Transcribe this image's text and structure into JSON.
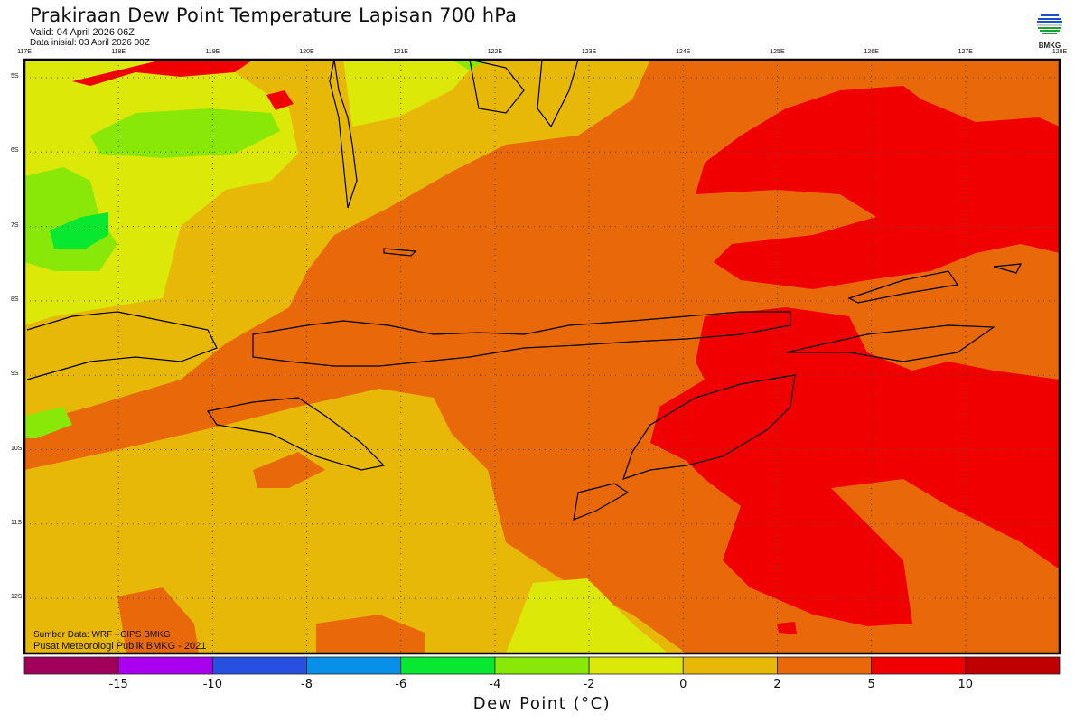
{
  "header": {
    "title": "Prakiraan Dew Point Temperature Lapisan 700 hPa",
    "valid": "Valid: 04 April 2026 06Z",
    "initial": "Data inisial: 03 April 2026 00Z",
    "logo_text": "BMKG"
  },
  "map": {
    "longitudes": [
      "117E",
      "118E",
      "119E",
      "120E",
      "121E",
      "122E",
      "123E",
      "124E",
      "125E",
      "126E",
      "127E",
      "128E"
    ],
    "latitudes": [
      "5S",
      "6S",
      "7S",
      "8S",
      "9S",
      "10S",
      "11S",
      "12S"
    ],
    "credit_source": "Sumber Data: WRF - CIPS BMKG",
    "credit_org": "Pusat Meteorologi Publik BMKG - 2021"
  },
  "legend": {
    "title": "Dew Point (°C)",
    "ticks": [
      "-15",
      "-10",
      "-8",
      "-6",
      "-4",
      "-2",
      "0",
      "2",
      "5",
      "10"
    ],
    "colors": [
      "#a0005a",
      "#aa00f0",
      "#2850e0",
      "#0890e8",
      "#08e830",
      "#8ae808",
      "#dce808",
      "#e8b808",
      "#e8680a",
      "#f00000",
      "#c00000"
    ]
  }
}
